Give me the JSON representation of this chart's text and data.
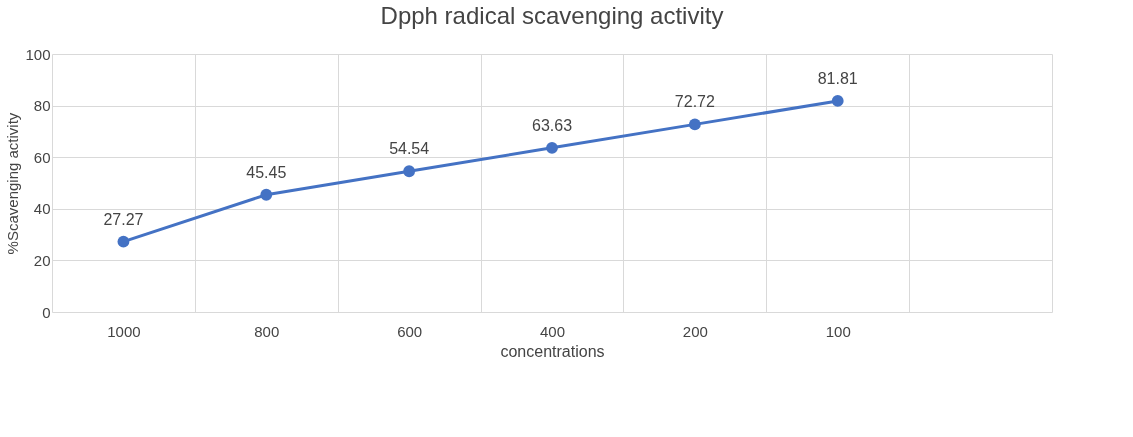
{
  "chart_data": {
    "type": "line",
    "title": "Dpph radical scavenging activity",
    "xlabel": "concentrations",
    "ylabel": "%Scavenging activity",
    "categories": [
      "1000",
      "800",
      "600",
      "400",
      "200",
      "100",
      null
    ],
    "series": [
      {
        "color": "#4472c4",
        "values": [
          27.27,
          45.45,
          54.54,
          63.63,
          72.72,
          81.81,
          null
        ]
      }
    ],
    "ylim": [
      0,
      100
    ],
    "yticks": [
      0,
      20,
      40,
      60,
      80,
      100
    ],
    "grid": true,
    "data_labels": true,
    "marker": "circle",
    "line_style": "solid",
    "legend": false
  }
}
